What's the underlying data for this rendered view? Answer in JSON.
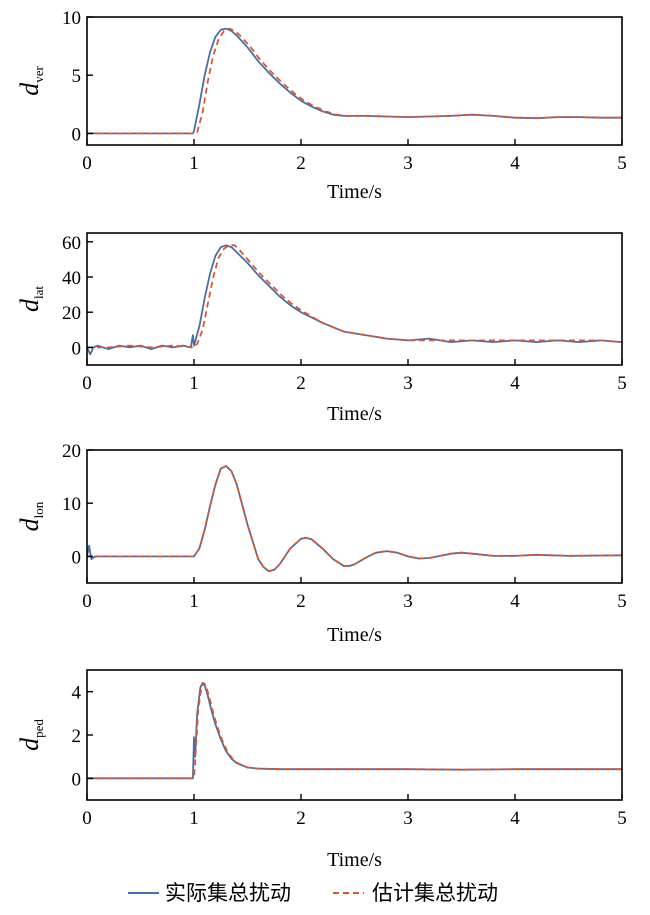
{
  "chart_data": [
    {
      "type": "line",
      "ylabel": "d",
      "ylabel_sub": "ver",
      "xlabel": "Time/s",
      "xlim": [
        0,
        5
      ],
      "ylim": [
        -1,
        10
      ],
      "xticks": [
        "0",
        "1",
        "2",
        "3",
        "4",
        "5"
      ],
      "yticks": [
        0,
        5,
        10
      ],
      "ytick_labels": [
        "0",
        "5",
        "10"
      ],
      "series": [
        {
          "name": "实际集总扰动",
          "color": "#4a6fa5",
          "style": "solid",
          "x": [
            0,
            0.5,
            0.99,
            1.0,
            1.05,
            1.1,
            1.15,
            1.2,
            1.25,
            1.3,
            1.35,
            1.4,
            1.5,
            1.6,
            1.7,
            1.8,
            1.9,
            2.0,
            2.1,
            2.2,
            2.3,
            2.4,
            2.6,
            2.8,
            3.0,
            3.2,
            3.4,
            3.6,
            3.8,
            4.0,
            4.2,
            4.4,
            4.6,
            4.8,
            5.0
          ],
          "y": [
            0,
            0,
            0,
            0.2,
            2.5,
            5.0,
            7.0,
            8.3,
            8.9,
            9.0,
            8.8,
            8.4,
            7.4,
            6.2,
            5.2,
            4.3,
            3.5,
            2.8,
            2.3,
            1.9,
            1.6,
            1.5,
            1.5,
            1.45,
            1.4,
            1.45,
            1.5,
            1.6,
            1.5,
            1.35,
            1.3,
            1.4,
            1.4,
            1.35,
            1.35
          ]
        },
        {
          "name": "估计集总扰动",
          "color": "#e0552d",
          "style": "dashed",
          "x": [
            0,
            0.5,
            1.0,
            1.03,
            1.08,
            1.13,
            1.18,
            1.23,
            1.28,
            1.33,
            1.38,
            1.43,
            1.53,
            1.63,
            1.73,
            1.83,
            1.93,
            2.03,
            2.13,
            2.23,
            2.33,
            2.43,
            2.6,
            2.8,
            3.0,
            3.2,
            3.4,
            3.6,
            3.8,
            4.0,
            4.2,
            4.4,
            4.6,
            4.8,
            5.0
          ],
          "y": [
            0,
            0,
            0,
            0.1,
            1.8,
            4.5,
            6.7,
            8.1,
            8.8,
            9.0,
            8.8,
            8.4,
            7.4,
            6.2,
            5.2,
            4.3,
            3.5,
            2.8,
            2.3,
            1.9,
            1.6,
            1.5,
            1.5,
            1.45,
            1.4,
            1.45,
            1.5,
            1.6,
            1.5,
            1.35,
            1.3,
            1.4,
            1.4,
            1.35,
            1.35
          ]
        }
      ]
    },
    {
      "type": "line",
      "ylabel": "d",
      "ylabel_sub": "lat",
      "xlabel": "Time/s",
      "xlim": [
        0,
        5
      ],
      "ylim": [
        -10,
        65
      ],
      "xticks": [
        "0",
        "1",
        "2",
        "3",
        "4",
        "5"
      ],
      "yticks": [
        0,
        20,
        40,
        60
      ],
      "ytick_labels": [
        "0",
        "20",
        "40",
        "60"
      ],
      "series": [
        {
          "name": "实际集总扰动",
          "color": "#4a6fa5",
          "style": "solid",
          "x": [
            0,
            0.03,
            0.06,
            0.1,
            0.2,
            0.3,
            0.4,
            0.5,
            0.6,
            0.7,
            0.8,
            0.9,
            0.97,
            0.99,
            1.0,
            1.05,
            1.1,
            1.15,
            1.2,
            1.25,
            1.3,
            1.35,
            1.4,
            1.5,
            1.6,
            1.7,
            1.8,
            1.9,
            2.0,
            2.2,
            2.4,
            2.6,
            2.8,
            3.0,
            3.2,
            3.4,
            3.6,
            3.8,
            4.0,
            4.2,
            4.4,
            4.6,
            4.8,
            5.0
          ],
          "y": [
            0,
            -4,
            0,
            1,
            -1,
            1,
            0,
            1,
            -1,
            1,
            0,
            1,
            0,
            7,
            1,
            12,
            28,
            42,
            52,
            57,
            58,
            57,
            54,
            48,
            41,
            35,
            29,
            24,
            20,
            14,
            9,
            7,
            5,
            4,
            5,
            3,
            4,
            3,
            4,
            3,
            4,
            3,
            4,
            3
          ]
        },
        {
          "name": "估计集总扰动",
          "color": "#e0552d",
          "style": "dashed",
          "x": [
            0,
            0.2,
            0.4,
            0.6,
            0.8,
            1.0,
            1.03,
            1.08,
            1.13,
            1.18,
            1.23,
            1.28,
            1.33,
            1.38,
            1.43,
            1.53,
            1.63,
            1.73,
            1.83,
            1.93,
            2.03,
            2.2,
            2.4,
            2.6,
            2.8,
            3.0,
            3.2,
            3.4,
            3.6,
            3.8,
            4.0,
            4.2,
            4.4,
            4.6,
            4.8,
            5.0
          ],
          "y": [
            0,
            0,
            1,
            0,
            1,
            0,
            2,
            10,
            25,
            40,
            51,
            56,
            58,
            58,
            55,
            48,
            41,
            35,
            29,
            24,
            20,
            14,
            9,
            7,
            5,
            4,
            4,
            4,
            4,
            4,
            4,
            4,
            4,
            4,
            4,
            3
          ]
        }
      ]
    },
    {
      "type": "line",
      "ylabel": "d",
      "ylabel_sub": "lon",
      "xlabel": "Time/s",
      "xlim": [
        0,
        5
      ],
      "ylim": [
        -5,
        20
      ],
      "xticks": [
        "0",
        "1",
        "2",
        "3",
        "4",
        "5"
      ],
      "yticks": [
        0,
        10,
        20
      ],
      "ytick_labels": [
        "0",
        "10",
        "20"
      ],
      "series": [
        {
          "name": "实际集总扰动",
          "color": "#4a6fa5",
          "style": "solid",
          "x": [
            0,
            0.02,
            0.04,
            0.08,
            0.3,
            0.6,
            0.9,
            1.0,
            1.05,
            1.1,
            1.15,
            1.2,
            1.25,
            1.3,
            1.35,
            1.4,
            1.5,
            1.6,
            1.65,
            1.7,
            1.75,
            1.8,
            1.9,
            2.0,
            2.05,
            2.1,
            2.2,
            2.3,
            2.4,
            2.45,
            2.5,
            2.6,
            2.7,
            2.8,
            2.9,
            3.0,
            3.1,
            3.2,
            3.3,
            3.4,
            3.5,
            3.6,
            3.8,
            4.0,
            4.2,
            4.5,
            5.0
          ],
          "y": [
            0,
            2,
            -0.5,
            0,
            0,
            0,
            0,
            0,
            1.5,
            5,
            9.5,
            13.5,
            16.5,
            17,
            16,
            13.5,
            6,
            -0.5,
            -2,
            -2.8,
            -2.5,
            -1.5,
            1.5,
            3.3,
            3.5,
            3.2,
            1.5,
            -0.5,
            -1.8,
            -1.8,
            -1.5,
            -0.3,
            0.7,
            1.0,
            0.7,
            0,
            -0.4,
            -0.3,
            0.1,
            0.5,
            0.7,
            0.5,
            0.1,
            0.1,
            0.3,
            0.1,
            0.2
          ]
        },
        {
          "name": "估计集总扰动",
          "color": "#e0552d",
          "style": "dashed",
          "x": [
            0,
            0.3,
            0.6,
            0.9,
            1.0,
            1.05,
            1.1,
            1.15,
            1.2,
            1.25,
            1.3,
            1.35,
            1.4,
            1.5,
            1.6,
            1.65,
            1.7,
            1.75,
            1.8,
            1.9,
            2.0,
            2.05,
            2.1,
            2.2,
            2.3,
            2.4,
            2.45,
            2.5,
            2.6,
            2.7,
            2.8,
            2.9,
            3.0,
            3.1,
            3.2,
            3.3,
            3.4,
            3.5,
            3.6,
            3.8,
            4.0,
            4.2,
            4.5,
            5.0
          ],
          "y": [
            0,
            0,
            0,
            0,
            0,
            1.5,
            5,
            9.5,
            13.5,
            16.5,
            17,
            16,
            13.5,
            6,
            -0.5,
            -2,
            -2.8,
            -2.5,
            -1.5,
            1.5,
            3.3,
            3.5,
            3.2,
            1.5,
            -0.5,
            -1.8,
            -1.8,
            -1.5,
            -0.3,
            0.7,
            1.0,
            0.7,
            0,
            -0.4,
            -0.3,
            0.1,
            0.5,
            0.7,
            0.5,
            0.1,
            0.1,
            0.3,
            0.1,
            0.2
          ]
        }
      ]
    },
    {
      "type": "line",
      "ylabel": "d",
      "ylabel_sub": "ped",
      "xlabel": "Time/s",
      "xlim": [
        0,
        5
      ],
      "ylim": [
        -1,
        5
      ],
      "xticks": [
        "0",
        "1",
        "2",
        "3",
        "4",
        "5"
      ],
      "yticks": [
        0,
        2,
        4
      ],
      "ytick_labels": [
        "0",
        "2",
        "4"
      ],
      "series": [
        {
          "name": "实际集总扰动",
          "color": "#4a6fa5",
          "style": "solid",
          "x": [
            0,
            0.5,
            0.99,
            1.0,
            1.01,
            1.03,
            1.06,
            1.08,
            1.1,
            1.13,
            1.16,
            1.2,
            1.25,
            1.3,
            1.35,
            1.4,
            1.5,
            1.6,
            1.8,
            2.0,
            2.5,
            3.0,
            3.5,
            4.0,
            4.5,
            5.0
          ],
          "y": [
            0,
            0,
            0,
            1.9,
            1.0,
            3.0,
            4.2,
            4.4,
            4.3,
            3.8,
            3.2,
            2.5,
            1.8,
            1.25,
            0.9,
            0.7,
            0.5,
            0.45,
            0.42,
            0.42,
            0.42,
            0.42,
            0.4,
            0.42,
            0.42,
            0.42
          ]
        },
        {
          "name": "估计集总扰动",
          "color": "#e0552d",
          "style": "dashed",
          "x": [
            0,
            0.5,
            1.0,
            1.02,
            1.04,
            1.07,
            1.09,
            1.11,
            1.14,
            1.17,
            1.21,
            1.26,
            1.31,
            1.36,
            1.41,
            1.5,
            1.6,
            1.8,
            2.0,
            2.5,
            3.0,
            3.5,
            4.0,
            4.5,
            5.0
          ],
          "y": [
            0,
            0,
            0,
            1.5,
            3.2,
            4.2,
            4.4,
            4.3,
            3.8,
            3.2,
            2.5,
            1.8,
            1.25,
            0.9,
            0.7,
            0.5,
            0.45,
            0.42,
            0.42,
            0.42,
            0.42,
            0.4,
            0.42,
            0.42,
            0.42
          ]
        }
      ]
    }
  ],
  "legend": {
    "placement": "bottom-center",
    "items": [
      {
        "label": "实际集总扰动",
        "color": "#4a6fa5",
        "style": "solid"
      },
      {
        "label": "估计集总扰动",
        "color": "#e0552d",
        "style": "dashed"
      }
    ]
  }
}
